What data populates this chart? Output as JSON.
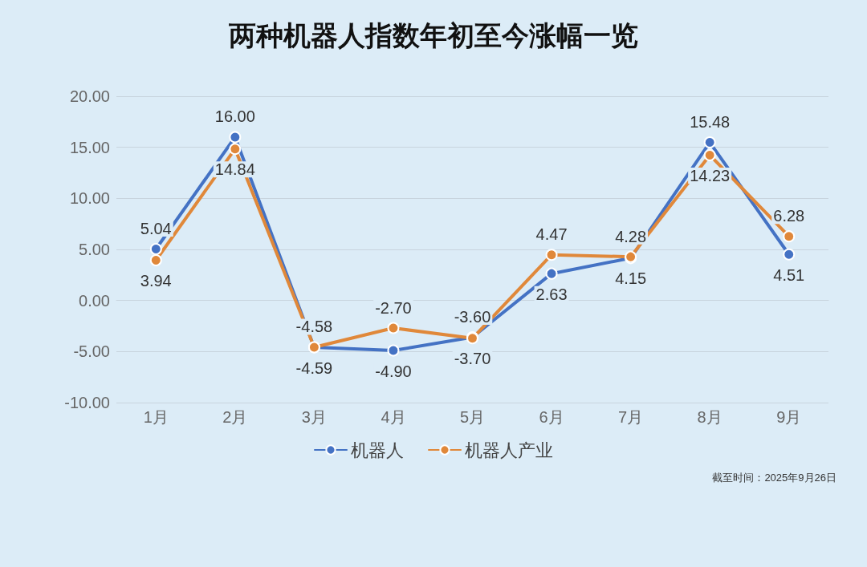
{
  "chart_data": {
    "type": "line",
    "title": "两种机器人指数年初至今涨幅一览",
    "categories": [
      "1月",
      "2月",
      "3月",
      "4月",
      "5月",
      "6月",
      "7月",
      "8月",
      "9月"
    ],
    "series": [
      {
        "name": "机器人",
        "color": "#4472c4",
        "values": [
          5.04,
          16.0,
          -4.59,
          -4.9,
          -3.6,
          2.63,
          4.15,
          15.48,
          4.51
        ],
        "value_labels": [
          "5.04",
          "16.00",
          "-4.59",
          "-4.90",
          "-3.60",
          "2.63",
          "4.15",
          "15.48",
          "4.51"
        ]
      },
      {
        "name": "机器人产业",
        "color": "#e0883a",
        "values": [
          3.94,
          14.84,
          -4.58,
          -2.7,
          -3.7,
          4.47,
          4.28,
          14.23,
          6.28
        ],
        "value_labels": [
          "3.94",
          "14.84",
          "-4.58",
          "-2.70",
          "-3.70",
          "4.47",
          "4.28",
          "14.23",
          "6.28"
        ]
      }
    ],
    "ylim": [
      -10,
      20
    ],
    "yticks": [
      {
        "value": -10,
        "label": "-10.00"
      },
      {
        "value": -5,
        "label": "-5.00"
      },
      {
        "value": 0,
        "label": "0.00"
      },
      {
        "value": 5,
        "label": "5.00"
      },
      {
        "value": 10,
        "label": "10.00"
      },
      {
        "value": 15,
        "label": "15.00"
      },
      {
        "value": 20,
        "label": "20.00"
      }
    ],
    "grid": "y",
    "legend": "bottom",
    "marker": "circle",
    "line_style": "solid",
    "annotations": [
      "截至时间：2025年9月26日"
    ]
  }
}
